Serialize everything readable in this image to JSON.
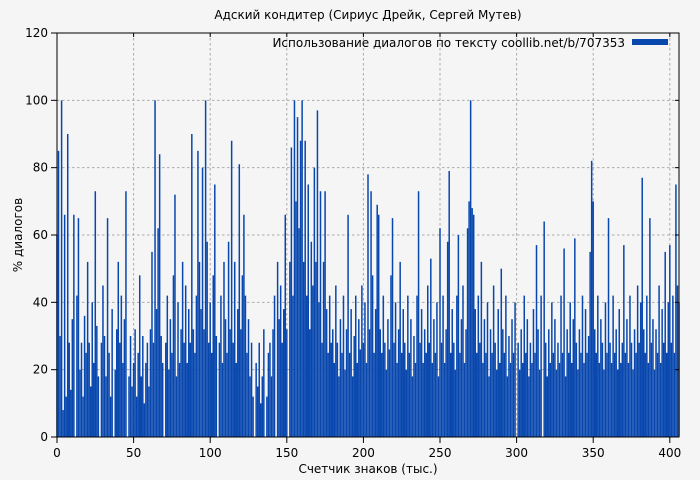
{
  "colors": {
    "background": "#f5f5f5",
    "accent": "#0847ae",
    "grid": "#aaaaaa",
    "border": "#000000",
    "text": "#000000"
  },
  "chart_data": {
    "type": "bar",
    "style": "impulses",
    "title": "Адский кондитер (Сириус Дрейк, Сергей Мутев)",
    "legend": [
      "Использование диалогов по тексту coollib.net/b/707353"
    ],
    "legend_position": "top-right-inside",
    "xlabel": "Счетчик знаков (тыс.)",
    "ylabel": "% диалогов",
    "xlim": [
      0,
      406
    ],
    "ylim": [
      0,
      120
    ],
    "x_ticks": [
      0,
      50,
      100,
      150,
      200,
      250,
      300,
      350,
      400
    ],
    "y_ticks": [
      0,
      20,
      40,
      60,
      80,
      100,
      120
    ],
    "grid": true,
    "x_start": 0,
    "x_step": 1,
    "values": [
      60,
      85,
      30,
      100,
      8,
      66,
      12,
      90,
      28,
      14,
      35,
      66,
      0,
      42,
      65,
      20,
      28,
      12,
      36,
      25,
      52,
      28,
      15,
      40,
      22,
      73,
      33,
      18,
      0,
      28,
      45,
      30,
      18,
      65,
      25,
      12,
      38,
      0,
      20,
      32,
      52,
      28,
      42,
      22,
      35,
      73,
      0,
      18,
      30,
      15,
      22,
      32,
      12,
      25,
      48,
      18,
      30,
      10,
      22,
      28,
      15,
      32,
      55,
      28,
      100,
      38,
      62,
      84,
      30,
      22,
      0,
      28,
      42,
      20,
      35,
      25,
      48,
      72,
      18,
      40,
      22,
      32,
      52,
      28,
      45,
      22,
      38,
      28,
      90,
      32,
      25,
      42,
      85,
      52,
      38,
      80,
      32,
      100,
      58,
      28,
      40,
      25,
      48,
      75,
      30,
      0,
      28,
      42,
      22,
      52,
      35,
      25,
      58,
      32,
      88,
      28,
      52,
      22,
      38,
      81,
      32,
      48,
      66,
      42,
      25,
      35,
      18,
      28,
      12,
      0,
      22,
      15,
      28,
      10,
      18,
      32,
      0,
      12,
      25,
      28,
      18,
      32,
      42,
      0,
      52,
      35,
      45,
      28,
      38,
      66,
      32,
      0,
      52,
      86,
      42,
      100,
      70,
      95,
      62,
      88,
      100,
      52,
      88,
      42,
      75,
      32,
      58,
      45,
      80,
      52,
      97,
      40,
      73,
      28,
      52,
      73,
      38,
      25,
      42,
      28,
      32,
      22,
      45,
      28,
      18,
      35,
      25,
      42,
      20,
      32,
      66,
      25,
      38,
      18,
      30,
      42,
      22,
      35,
      26,
      45,
      28,
      40,
      22,
      78,
      32,
      73,
      48,
      25,
      38,
      69,
      66,
      32,
      25,
      42,
      28,
      20,
      35,
      26,
      48,
      65,
      28,
      40,
      22,
      32,
      52,
      25,
      38,
      28,
      20,
      42,
      25,
      35,
      18,
      30,
      22,
      42,
      73,
      28,
      38,
      22,
      32,
      25,
      45,
      28,
      53,
      22,
      35,
      25,
      40,
      18,
      62,
      28,
      42,
      22,
      32,
      58,
      79,
      25,
      38,
      28,
      20,
      42,
      60,
      25,
      35,
      45,
      22,
      32,
      62,
      70,
      100,
      68,
      66,
      38,
      25,
      42,
      28,
      52,
      22,
      35,
      25,
      40,
      18,
      32,
      25,
      45,
      28,
      20,
      38,
      22,
      50,
      32,
      25,
      42,
      18,
      30,
      22,
      35,
      25,
      40,
      0,
      28,
      20,
      32,
      22,
      42,
      25,
      35,
      18,
      28,
      22,
      38,
      25,
      57,
      32,
      20,
      42,
      0,
      64,
      28,
      18,
      32,
      22,
      40,
      25,
      35,
      20,
      28,
      22,
      42,
      25,
      56,
      18,
      32,
      25,
      40,
      22,
      35,
      59,
      28,
      20,
      32,
      25,
      42,
      22,
      38,
      25,
      30,
      55,
      82,
      70,
      32,
      25,
      42,
      22,
      35,
      28,
      20,
      40,
      25,
      65,
      28,
      22,
      42,
      25,
      32,
      20,
      38,
      22,
      28,
      57,
      25,
      35,
      22,
      42,
      28,
      20,
      32,
      25,
      45,
      28,
      40,
      77,
      32,
      25,
      42,
      22,
      65,
      28,
      35,
      20,
      32,
      25,
      45,
      22,
      38,
      28,
      55,
      25,
      40,
      57,
      28,
      42,
      25,
      75,
      45,
      40
    ]
  }
}
